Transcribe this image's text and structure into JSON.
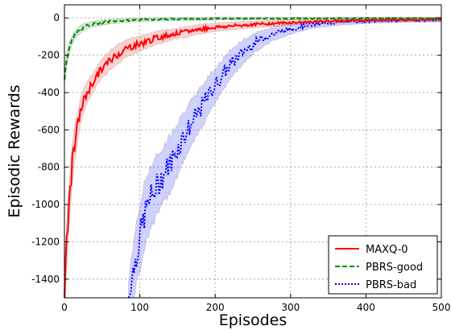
{
  "chart_data": {
    "type": "line",
    "title": "",
    "xlabel": "Episodes",
    "ylabel": "Episodic Rewards",
    "xlim": [
      0,
      500
    ],
    "ylim": [
      -1500,
      70
    ],
    "xticks": [
      0,
      100,
      200,
      300,
      400,
      500
    ],
    "yticks": [
      0,
      -200,
      -400,
      -600,
      -800,
      -1000,
      -1200,
      -1400
    ],
    "grid": true,
    "legend_position": "lower-right",
    "series": [
      {
        "name": "MAXQ-0",
        "color": "#ff0000",
        "style": "solid",
        "x": [
          0,
          5,
          10,
          15,
          20,
          25,
          30,
          40,
          50,
          60,
          70,
          80,
          90,
          100,
          120,
          140,
          160,
          180,
          200,
          250,
          300,
          350,
          400,
          450,
          500
        ],
        "y": [
          -1480,
          -1050,
          -800,
          -640,
          -520,
          -450,
          -400,
          -330,
          -270,
          -230,
          -195,
          -170,
          -150,
          -140,
          -110,
          -90,
          -75,
          -60,
          -50,
          -35,
          -25,
          -18,
          -12,
          -10,
          -8
        ],
        "band": [
          140,
          130,
          110,
          90,
          70,
          60,
          55,
          50,
          50,
          50,
          50,
          45,
          45,
          40,
          35,
          30,
          28,
          25,
          22,
          18,
          15,
          12,
          10,
          10,
          10
        ]
      },
      {
        "name": "PBRS-good",
        "color": "#008800",
        "style": "dashed",
        "x": [
          0,
          3,
          6,
          10,
          15,
          20,
          25,
          30,
          40,
          50,
          60,
          80,
          100,
          150,
          200,
          300,
          400,
          500
        ],
        "y": [
          -320,
          -220,
          -170,
          -120,
          -85,
          -65,
          -50,
          -42,
          -32,
          -25,
          -20,
          -14,
          -10,
          -6,
          -4,
          -3,
          -2,
          -2
        ],
        "band": [
          40,
          35,
          30,
          25,
          22,
          20,
          18,
          16,
          15,
          14,
          12,
          10,
          9,
          8,
          7,
          6,
          6,
          6
        ]
      },
      {
        "name": "PBRS-bad",
        "color": "#0000ff",
        "style": "dotted",
        "x": [
          85,
          90,
          95,
          100,
          105,
          110,
          120,
          130,
          140,
          150,
          160,
          170,
          180,
          190,
          200,
          220,
          240,
          260,
          280,
          300,
          320,
          340,
          360,
          400,
          450,
          500
        ],
        "y": [
          -1500,
          -1380,
          -1280,
          -1180,
          -1080,
          -1000,
          -920,
          -850,
          -780,
          -700,
          -620,
          -560,
          -490,
          -420,
          -360,
          -250,
          -170,
          -115,
          -80,
          -60,
          -40,
          -32,
          -25,
          -18,
          -14,
          -12
        ],
        "band": [
          80,
          140,
          160,
          170,
          170,
          170,
          160,
          150,
          150,
          140,
          130,
          120,
          110,
          100,
          90,
          75,
          60,
          45,
          35,
          28,
          22,
          18,
          15,
          12,
          10,
          10
        ]
      }
    ]
  }
}
